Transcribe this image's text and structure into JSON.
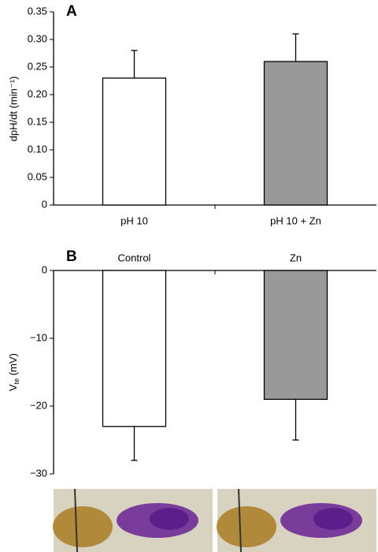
{
  "chart_data": [
    {
      "type": "bar",
      "panel_label": "A",
      "y_label": "dpH/dt (min⁻¹)",
      "categories": [
        "pH 10",
        "pH 10 + Zn"
      ],
      "category_label_position": "bottom",
      "values": [
        0.23,
        0.26
      ],
      "errors": [
        0.05,
        0.05
      ],
      "colors": [
        "#ffffff",
        "#999999"
      ],
      "ylim": [
        0,
        0.35
      ],
      "yticks": [
        0,
        0.05,
        {
          "value": 0.1,
          "label": "0.10"
        },
        0.15,
        {
          "value": 0.2,
          "label": "0.20"
        },
        0.25,
        {
          "value": 0.3,
          "label": "0.30"
        },
        0.35
      ]
    },
    {
      "type": "bar",
      "panel_label": "B",
      "y_label": {
        "main": "V",
        "subscript": "te",
        "unit": " (mV)"
      },
      "categories": [
        "Control",
        "Zn"
      ],
      "category_label_position": "top",
      "values": [
        -23,
        -19
      ],
      "errors": [
        5,
        6
      ],
      "colors": [
        "#ffffff",
        "#999999"
      ],
      "ylim": [
        -30,
        0
      ],
      "yticks": [
        {
          "value": -30,
          "label": "−30"
        },
        {
          "value": -20,
          "label": "−20"
        },
        {
          "value": -10,
          "label": "−10"
        },
        0
      ]
    }
  ]
}
